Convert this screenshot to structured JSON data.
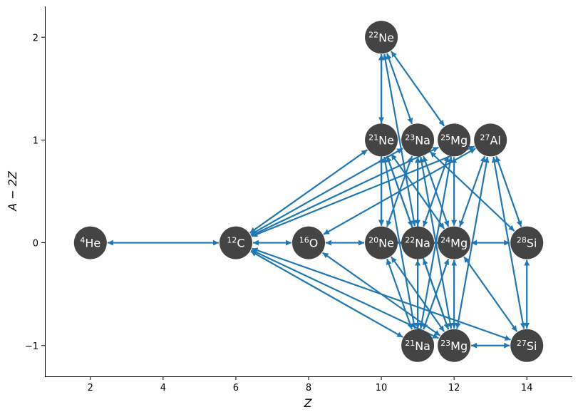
{
  "chart_data": {
    "type": "network",
    "xlabel": "Z",
    "ylabel": "A − 2Z",
    "xlim": [
      0.75,
      15.25
    ],
    "ylim": [
      -1.3,
      2.3
    ],
    "xticks": [
      2,
      4,
      6,
      8,
      10,
      12,
      14
    ],
    "yticks": [
      -1,
      0,
      1,
      2
    ],
    "ytick_labels": [
      "−1",
      "0",
      "1",
      "2"
    ],
    "colors": {
      "node": "#444444",
      "edge": "#1f77b4",
      "label": "#ffffff"
    },
    "nodes": [
      {
        "id": "he4",
        "mass": "4",
        "sym": "He",
        "Z": 2,
        "N_minus_Z": 0
      },
      {
        "id": "c12",
        "mass": "12",
        "sym": "C",
        "Z": 6,
        "N_minus_Z": 0
      },
      {
        "id": "o16",
        "mass": "16",
        "sym": "O",
        "Z": 8,
        "N_minus_Z": 0
      },
      {
        "id": "ne20",
        "mass": "20",
        "sym": "Ne",
        "Z": 10,
        "N_minus_Z": 0
      },
      {
        "id": "na22",
        "mass": "22",
        "sym": "Na",
        "Z": 11,
        "N_minus_Z": 0
      },
      {
        "id": "mg24",
        "mass": "24",
        "sym": "Mg",
        "Z": 12,
        "N_minus_Z": 0
      },
      {
        "id": "si28",
        "mass": "28",
        "sym": "Si",
        "Z": 14,
        "N_minus_Z": 0
      },
      {
        "id": "ne21",
        "mass": "21",
        "sym": "Ne",
        "Z": 10,
        "N_minus_Z": 1
      },
      {
        "id": "na23",
        "mass": "23",
        "sym": "Na",
        "Z": 11,
        "N_minus_Z": 1
      },
      {
        "id": "mg25",
        "mass": "25",
        "sym": "Mg",
        "Z": 12,
        "N_minus_Z": 1
      },
      {
        "id": "al27",
        "mass": "27",
        "sym": "Al",
        "Z": 13,
        "N_minus_Z": 1
      },
      {
        "id": "ne22",
        "mass": "22",
        "sym": "Ne",
        "Z": 10,
        "N_minus_Z": 2
      },
      {
        "id": "na21",
        "mass": "21",
        "sym": "Na",
        "Z": 11,
        "N_minus_Z": -1
      },
      {
        "id": "mg23",
        "mass": "23",
        "sym": "Mg",
        "Z": 12,
        "N_minus_Z": -1
      },
      {
        "id": "si27",
        "mass": "27",
        "sym": "Si",
        "Z": 14,
        "N_minus_Z": -1
      }
    ],
    "edges": [
      [
        "he4",
        "c12"
      ],
      [
        "c12",
        "o16"
      ],
      [
        "o16",
        "ne20"
      ],
      [
        "ne20",
        "na22"
      ],
      [
        "na22",
        "mg24"
      ],
      [
        "mg24",
        "si28"
      ],
      [
        "c12",
        "ne21"
      ],
      [
        "c12",
        "na23"
      ],
      [
        "c12",
        "mg25"
      ],
      [
        "c12",
        "al27"
      ],
      [
        "c12",
        "na21"
      ],
      [
        "c12",
        "mg23"
      ],
      [
        "c12",
        "si27"
      ],
      [
        "o16",
        "al27"
      ],
      [
        "o16",
        "mg23"
      ],
      [
        "ne22",
        "ne21"
      ],
      [
        "ne22",
        "na23"
      ],
      [
        "ne22",
        "mg25"
      ],
      [
        "ne22",
        "ne20"
      ],
      [
        "ne22",
        "na22"
      ],
      [
        "ne21",
        "ne20"
      ],
      [
        "ne21",
        "na22"
      ],
      [
        "ne21",
        "mg24"
      ],
      [
        "ne21",
        "na21"
      ],
      [
        "ne21",
        "mg23"
      ],
      [
        "na23",
        "ne20"
      ],
      [
        "na23",
        "na22"
      ],
      [
        "na23",
        "mg24"
      ],
      [
        "na23",
        "na21"
      ],
      [
        "na23",
        "mg23"
      ],
      [
        "na23",
        "si28"
      ],
      [
        "mg25",
        "na22"
      ],
      [
        "mg25",
        "mg24"
      ],
      [
        "mg25",
        "na21"
      ],
      [
        "al27",
        "mg24"
      ],
      [
        "al27",
        "si28"
      ],
      [
        "al27",
        "si27"
      ],
      [
        "al27",
        "mg23"
      ],
      [
        "na21",
        "ne20"
      ],
      [
        "na21",
        "na22"
      ],
      [
        "na21",
        "mg24"
      ],
      [
        "mg23",
        "ne20"
      ],
      [
        "mg23",
        "na22"
      ],
      [
        "mg23",
        "mg24"
      ],
      [
        "mg23",
        "si27"
      ],
      [
        "si27",
        "mg24"
      ],
      [
        "si27",
        "si28"
      ]
    ]
  }
}
